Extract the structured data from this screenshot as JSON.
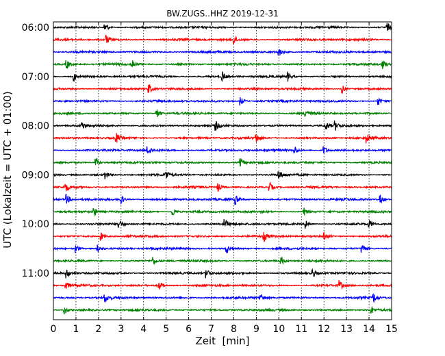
{
  "chart_data": {
    "type": "line",
    "title": "BW.ZUGS..HHZ 2019-12-31",
    "xlabel": "Zeit  [min]",
    "ylabel": "UTC (Lokalzeit = UTC + 01:00)",
    "xlim": [
      0,
      15
    ],
    "x_ticks": [
      "0",
      "1",
      "2",
      "3",
      "4",
      "5",
      "6",
      "7",
      "8",
      "9",
      "10",
      "11",
      "12",
      "13",
      "14",
      "15"
    ],
    "y_ticks": [
      "06:00",
      "07:00",
      "08:00",
      "09:00",
      "10:00",
      "11:00"
    ],
    "grid": "vertical-dotted",
    "series_colors": [
      "#000000",
      "#ff0000",
      "#0000ff",
      "#008000"
    ],
    "traces": [
      {
        "start_utc": "06:00",
        "events": [
          2.3,
          14.8
        ]
      },
      {
        "start_utc": "06:15",
        "events": [
          2.35,
          8.0
        ]
      },
      {
        "start_utc": "06:30",
        "events": [
          10.0
        ]
      },
      {
        "start_utc": "06:45",
        "events": [
          0.6,
          3.5,
          14.6
        ]
      },
      {
        "start_utc": "07:00",
        "events": [
          0.9,
          7.5,
          10.4
        ]
      },
      {
        "start_utc": "07:15",
        "events": [
          4.25,
          12.8
        ]
      },
      {
        "start_utc": "07:30",
        "events": [
          8.3,
          14.4
        ]
      },
      {
        "start_utc": "07:45",
        "events": [
          4.6,
          11.2
        ]
      },
      {
        "start_utc": "08:00",
        "events": [
          1.25,
          7.2,
          12.1,
          12.5
        ]
      },
      {
        "start_utc": "08:15",
        "events": [
          2.8,
          9.0,
          13.9
        ]
      },
      {
        "start_utc": "08:30",
        "events": [
          4.2,
          10.7,
          12.0
        ]
      },
      {
        "start_utc": "08:45",
        "events": [
          1.9,
          8.3
        ]
      },
      {
        "start_utc": "09:00",
        "events": [
          2.3,
          5.0,
          10.0
        ]
      },
      {
        "start_utc": "09:15",
        "events": [
          0.55,
          7.3,
          9.6
        ]
      },
      {
        "start_utc": "09:30",
        "events": [
          0.6,
          3.0,
          8.1,
          14.5
        ]
      },
      {
        "start_utc": "09:45",
        "events": [
          1.8,
          5.3,
          11.1
        ]
      },
      {
        "start_utc": "10:00",
        "events": [
          2.9,
          7.6,
          11.2,
          14.0
        ]
      },
      {
        "start_utc": "10:15",
        "events": [
          2.1,
          9.35,
          12.0
        ]
      },
      {
        "start_utc": "10:30",
        "events": [
          1.0,
          1.95,
          7.7,
          13.7
        ]
      },
      {
        "start_utc": "10:45",
        "events": [
          4.4,
          10.1
        ]
      },
      {
        "start_utc": "11:00",
        "events": [
          0.6,
          6.8,
          11.5
        ]
      },
      {
        "start_utc": "11:15",
        "events": [
          0.55,
          4.7,
          12.7
        ]
      },
      {
        "start_utc": "11:30",
        "events": [
          2.3,
          9.2,
          14.2
        ]
      },
      {
        "start_utc": "11:45",
        "events": [
          0.5,
          14.1
        ]
      }
    ]
  }
}
